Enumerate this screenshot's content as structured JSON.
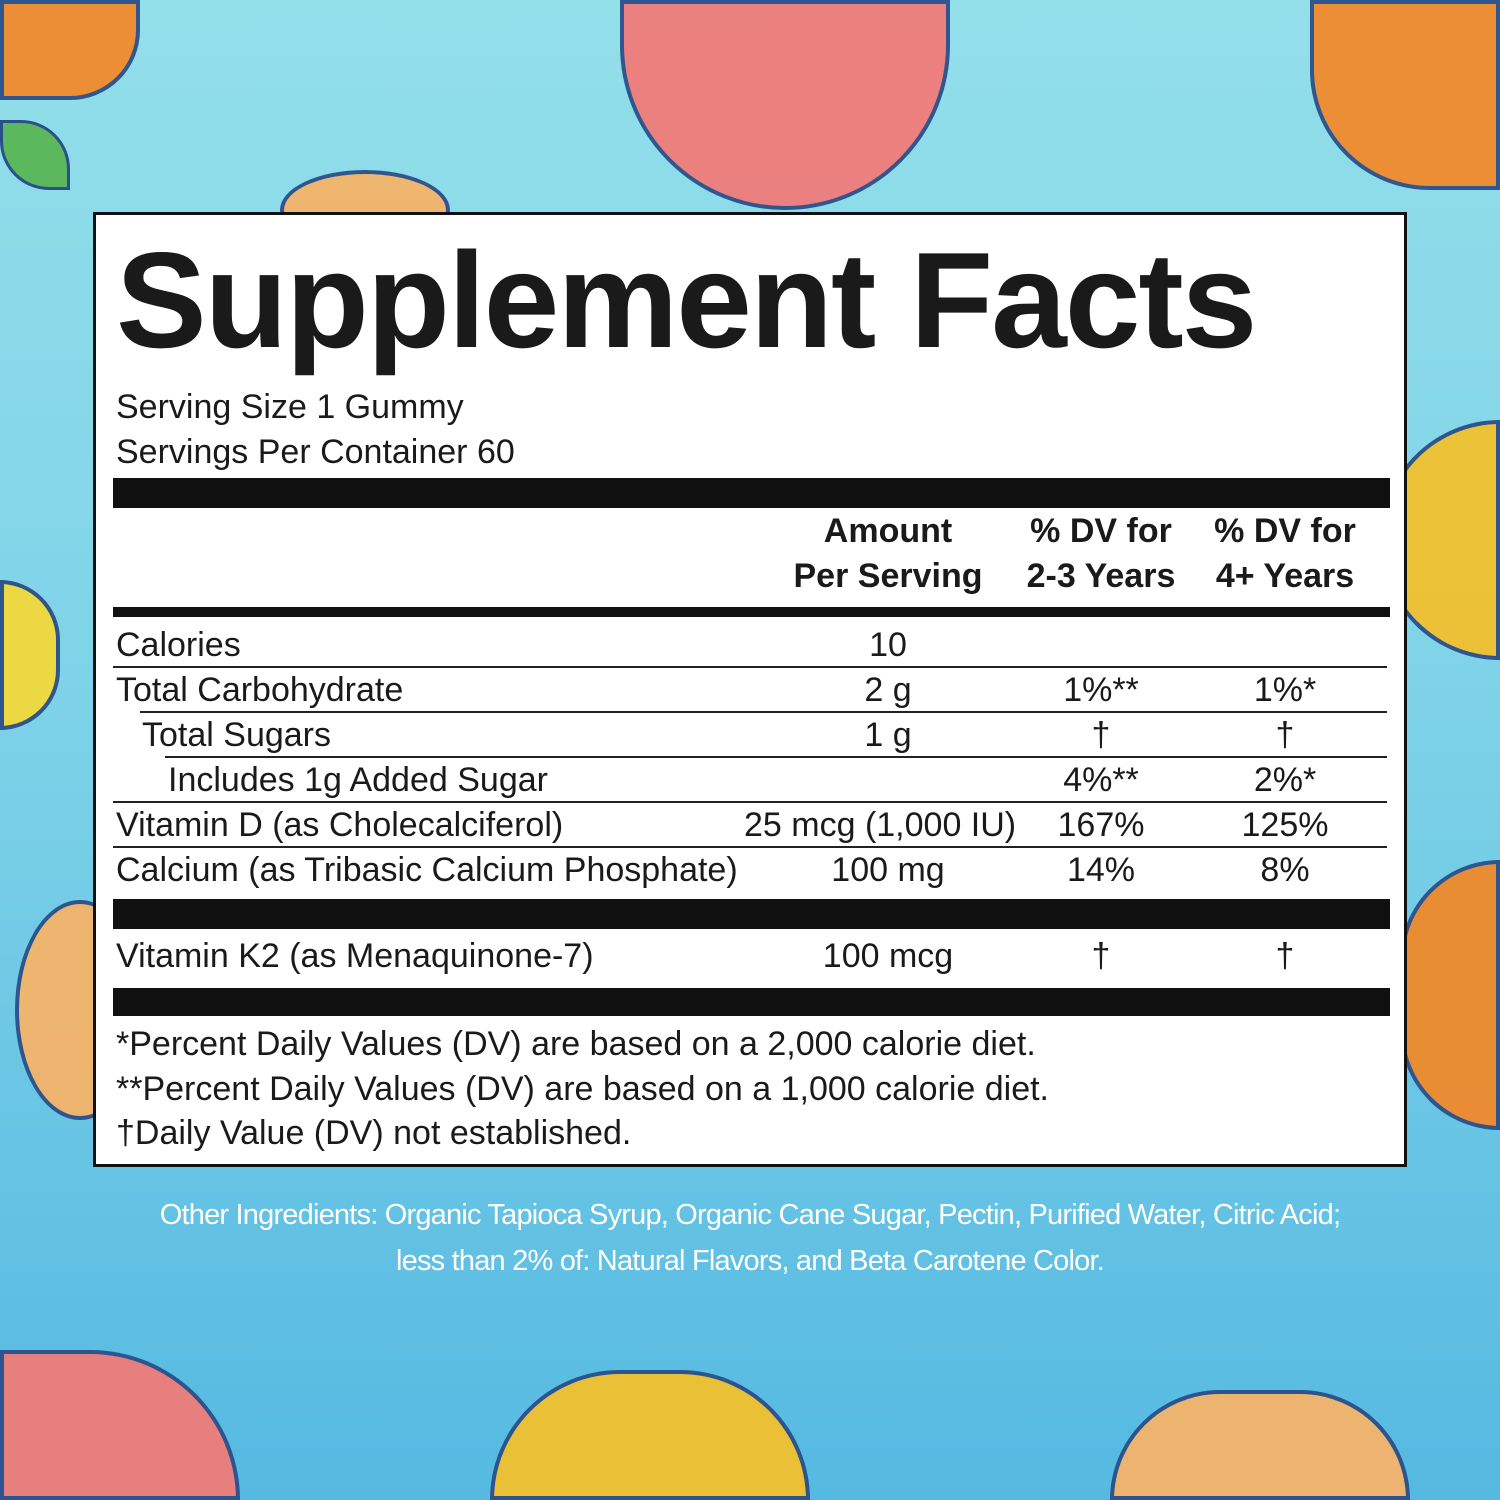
{
  "title": "Supplement Facts",
  "serving_size": "Serving Size 1 Gummy",
  "servings_per_container": "Servings Per Container 60",
  "headers": {
    "amount_1": "Amount",
    "amount_2": "Per Serving",
    "dv23_1": "% DV for",
    "dv23_2": "2-3 Years",
    "dv4_1": "% DV for",
    "dv4_2": "4+ Years"
  },
  "rows": [
    {
      "name": "Calories",
      "amount": "10",
      "dv23": "",
      "dv4": ""
    },
    {
      "name": "Total Carbohydrate",
      "amount": "2 g",
      "dv23": "1%**",
      "dv4": "1%*"
    },
    {
      "name": "Total Sugars",
      "amount": "1 g",
      "dv23": "†",
      "dv4": "†"
    },
    {
      "name": "Includes 1g Added Sugar",
      "amount": "",
      "dv23": "4%**",
      "dv4": "2%*"
    },
    {
      "name": "Vitamin D (as Cholecalciferol)",
      "amount": "25 mcg (1,000 IU)",
      "dv23": "167%",
      "dv4": "125%"
    },
    {
      "name": "Calcium (as Tribasic Calcium Phosphate)",
      "amount": "100 mg",
      "dv23": "14%",
      "dv4": "8%"
    },
    {
      "name": "Vitamin K2 (as Menaquinone-7)",
      "amount": "100 mcg",
      "dv23": "†",
      "dv4": "†"
    }
  ],
  "footnotes": [
    "*Percent Daily Values (DV) are based on a 2,000 calorie diet.",
    "**Percent Daily Values (DV) are based on a 1,000 calorie diet.",
    "†Daily Value (DV) not established."
  ],
  "other_ingredients": [
    "Other Ingredients: Organic Tapioca Syrup, Organic Cane Sugar, Pectin, Purified Water, Citric Acid;",
    "less than 2% of: Natural Flavors, and Beta Carotene Color."
  ],
  "colors": {
    "bg_top": "#93dfea",
    "bg_bottom": "#55b9e1",
    "peach": "#f07c7a",
    "orange": "#f08a2c",
    "mango": "#f2c12e"
  }
}
